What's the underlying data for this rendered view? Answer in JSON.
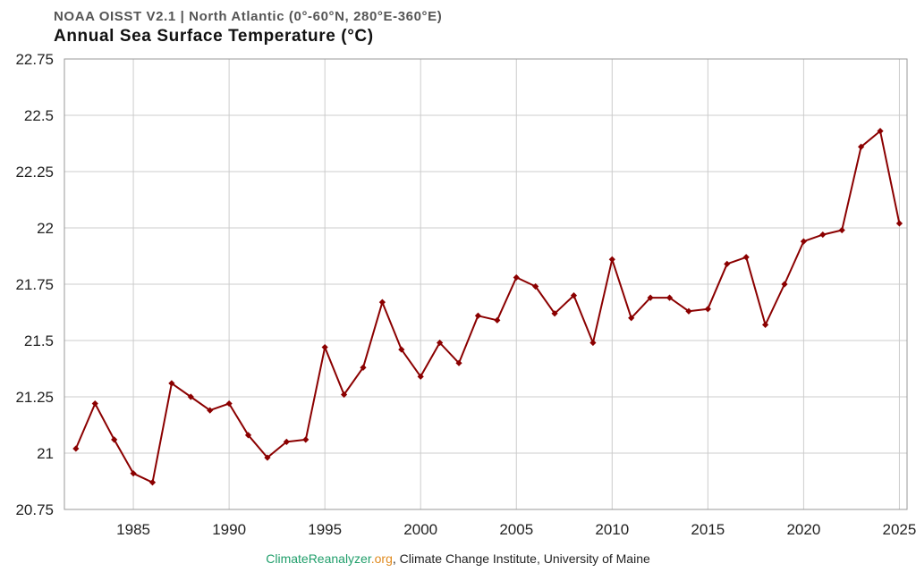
{
  "header": {
    "subtitle": "NOAA OISST V2.1 | North Atlantic (0°-60°N, 280°E-360°E)",
    "title": "Annual Sea Surface Temperature (°C)"
  },
  "footer": {
    "site_name": "ClimateReanalyzer",
    "site_tld": ".org",
    "credit": ", Climate Change Institute, University of Maine"
  },
  "colors": {
    "line": "#8b0000",
    "grid": "#cccccc",
    "frame": "#999999",
    "site_green": "#1f9e6a",
    "site_orange": "#e08a1e"
  },
  "chart_data": {
    "type": "line",
    "title": "Annual Sea Surface Temperature (°C)",
    "subtitle": "NOAA OISST V2.1 | North Atlantic (0°-60°N, 280°E-360°E)",
    "xlabel": "",
    "ylabel": "",
    "xlim": [
      1981.4,
      2025.4
    ],
    "ylim": [
      20.75,
      22.75
    ],
    "x_ticks": [
      1985,
      1990,
      1995,
      2000,
      2005,
      2010,
      2015,
      2020,
      2025
    ],
    "x_tick_labels": [
      "1985",
      "1990",
      "1995",
      "2000",
      "2005",
      "2010",
      "2015",
      "2020",
      "2025"
    ],
    "y_ticks": [
      20.75,
      21,
      21.25,
      21.5,
      21.75,
      22,
      22.25,
      22.5,
      22.75
    ],
    "y_tick_labels": [
      "20.75",
      "21",
      "21.25",
      "21.5",
      "21.75",
      "22",
      "22.25",
      "22.5",
      "22.75"
    ],
    "grid": true,
    "legend": "none",
    "series": [
      {
        "color": "#8b0000",
        "marker": "diamond",
        "x": [
          1982,
          1983,
          1984,
          1985,
          1986,
          1987,
          1988,
          1989,
          1990,
          1991,
          1992,
          1993,
          1994,
          1995,
          1996,
          1997,
          1998,
          1999,
          2000,
          2001,
          2002,
          2003,
          2004,
          2005,
          2006,
          2007,
          2008,
          2009,
          2010,
          2011,
          2012,
          2013,
          2014,
          2015,
          2016,
          2017,
          2018,
          2019,
          2020,
          2021,
          2022,
          2023,
          2024,
          2025
        ],
        "y": [
          21.02,
          21.22,
          21.06,
          20.91,
          20.87,
          21.31,
          21.25,
          21.19,
          21.22,
          21.08,
          20.98,
          21.05,
          21.06,
          21.47,
          21.26,
          21.38,
          21.67,
          21.46,
          21.34,
          21.49,
          21.4,
          21.61,
          21.59,
          21.78,
          21.74,
          21.62,
          21.7,
          21.49,
          21.86,
          21.6,
          21.69,
          21.69,
          21.63,
          21.64,
          21.84,
          21.87,
          21.57,
          21.75,
          21.94,
          21.97,
          21.99,
          22.36,
          22.43,
          22.02
        ]
      }
    ]
  }
}
